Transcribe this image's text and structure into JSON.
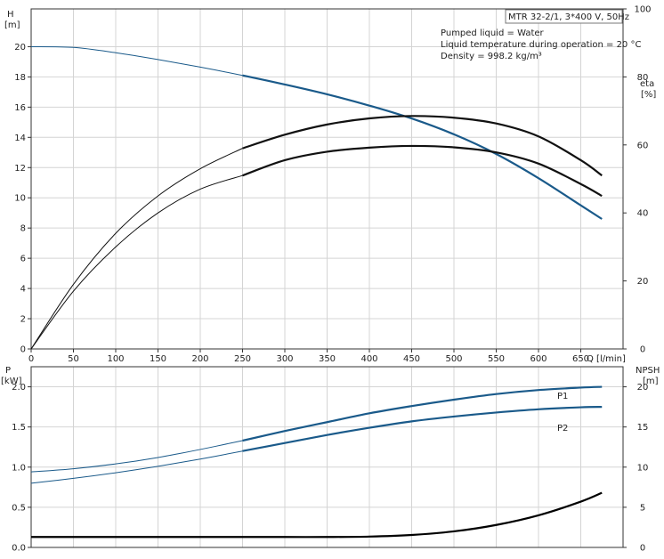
{
  "chart_data": [
    {
      "type": "line",
      "info_box": {
        "model": "MTR 32-2/1, 3*400 V, 50Hz",
        "lines": [
          "Pumped liquid = Water",
          "Liquid temperature during operation = 20 °C",
          "Density = 998.2 kg/m³"
        ]
      },
      "left_axis": {
        "title": "H",
        "unit": "[m]",
        "lim": [
          0,
          22.5
        ],
        "ticks": [
          "0",
          "2",
          "4",
          "6",
          "8",
          "10",
          "12",
          "14",
          "16",
          "18",
          "20"
        ]
      },
      "right_axis": {
        "title": "eta",
        "unit": "[%]",
        "lim": [
          0,
          100
        ],
        "ticks": [
          "0",
          "20",
          "40",
          "60",
          "80",
          "100"
        ]
      },
      "x_axis": {
        "title": "Q [l/min]",
        "lim": [
          0,
          700
        ],
        "ticks": [
          "0",
          "50",
          "100",
          "150",
          "200",
          "250",
          "300",
          "350",
          "400",
          "450",
          "500",
          "550",
          "600",
          "650"
        ]
      },
      "series": [
        {
          "key": "H",
          "axis": "left",
          "color": "#1a5a8a",
          "operating_range_start": 250,
          "x": [
            0,
            50,
            100,
            150,
            200,
            250,
            300,
            350,
            400,
            450,
            500,
            550,
            600,
            650,
            675
          ],
          "values": [
            20.0,
            19.95,
            19.6,
            19.15,
            18.65,
            18.1,
            17.5,
            16.85,
            16.1,
            15.25,
            14.2,
            12.9,
            11.3,
            9.5,
            8.6
          ]
        },
        {
          "key": "eta_upper",
          "axis": "right",
          "color": "#111111",
          "operating_range_start": 250,
          "x": [
            0,
            50,
            100,
            150,
            200,
            250,
            300,
            350,
            400,
            450,
            500,
            550,
            600,
            650,
            675
          ],
          "values": [
            0,
            19,
            34,
            45,
            53,
            59,
            63,
            66,
            67.8,
            68.5,
            68.0,
            66.3,
            62.5,
            55.5,
            51
          ]
        },
        {
          "key": "eta_lower",
          "axis": "right",
          "color": "#111111",
          "operating_range_start": 250,
          "x": [
            0,
            50,
            100,
            150,
            200,
            250,
            300,
            350,
            400,
            450,
            500,
            550,
            600,
            650,
            675
          ],
          "values": [
            0,
            17,
            30,
            40,
            47,
            51,
            55.5,
            58,
            59.2,
            59.7,
            59.3,
            57.8,
            54.5,
            48.5,
            45
          ]
        }
      ]
    },
    {
      "type": "line",
      "left_axis": {
        "title": "P",
        "unit": "[kW]",
        "lim": [
          0,
          2.25
        ],
        "ticks": [
          "0.0",
          "0.5",
          "1.0",
          "1.5",
          "2.0"
        ]
      },
      "right_axis": {
        "title": "NPSH",
        "unit": "[m]",
        "lim": [
          0,
          22.5
        ],
        "ticks": [
          "0",
          "5",
          "10",
          "15",
          "20"
        ]
      },
      "x_axis": {
        "lim": [
          0,
          700
        ]
      },
      "series": [
        {
          "key": "P1",
          "name": "P1",
          "axis": "left",
          "color": "#1a5a8a",
          "operating_range_start": 250,
          "x": [
            0,
            50,
            100,
            150,
            200,
            250,
            300,
            350,
            400,
            450,
            500,
            550,
            600,
            650,
            675
          ],
          "values": [
            0.94,
            0.98,
            1.04,
            1.12,
            1.22,
            1.33,
            1.45,
            1.56,
            1.67,
            1.76,
            1.84,
            1.91,
            1.96,
            1.99,
            2.0
          ]
        },
        {
          "key": "P2",
          "name": "P2",
          "axis": "left",
          "color": "#1a5a8a",
          "operating_range_start": 250,
          "x": [
            0,
            50,
            100,
            150,
            200,
            250,
            300,
            350,
            400,
            450,
            500,
            550,
            600,
            650,
            675
          ],
          "values": [
            0.8,
            0.86,
            0.93,
            1.01,
            1.1,
            1.2,
            1.3,
            1.4,
            1.49,
            1.57,
            1.63,
            1.68,
            1.72,
            1.745,
            1.75
          ]
        },
        {
          "key": "NPSH",
          "axis": "right",
          "color": "#000000",
          "x": [
            0,
            100,
            200,
            250,
            300,
            350,
            400,
            450,
            500,
            550,
            600,
            650,
            675
          ],
          "values": [
            1.3,
            1.3,
            1.3,
            1.3,
            1.3,
            1.3,
            1.35,
            1.55,
            2.0,
            2.8,
            4.0,
            5.7,
            6.8
          ]
        }
      ]
    }
  ]
}
